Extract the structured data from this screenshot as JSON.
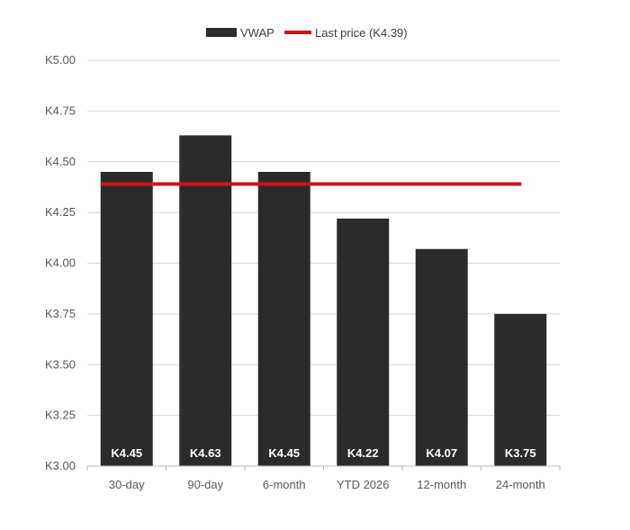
{
  "chart_data": {
    "type": "bar",
    "categories": [
      "30-day",
      "90-day",
      "6-month",
      "YTD 2026",
      "12-month",
      "24-month"
    ],
    "series": [
      {
        "name": "VWAP",
        "values": [
          4.45,
          4.63,
          4.45,
          4.22,
          4.07,
          3.75
        ],
        "color": "#2b2b2b"
      }
    ],
    "data_labels": [
      "K4.45",
      "K4.63",
      "K4.45",
      "K4.22",
      "K4.07",
      "K3.75"
    ],
    "reference_line": {
      "name": "Last price (K4.39)",
      "value": 4.39,
      "color": "#c8161d"
    },
    "ylim": [
      3.0,
      5.0
    ],
    "yticks": [
      3.0,
      3.25,
      3.5,
      3.75,
      4.0,
      4.25,
      4.5,
      4.75,
      5.0
    ],
    "ytick_labels": [
      "K3.00",
      "K3.25",
      "K3.50",
      "K3.75",
      "K4.00",
      "K4.25",
      "K4.50",
      "K4.75",
      "K5.00"
    ],
    "grid": true,
    "legend_position": "top-center",
    "title": "",
    "xlabel": "",
    "ylabel": ""
  }
}
